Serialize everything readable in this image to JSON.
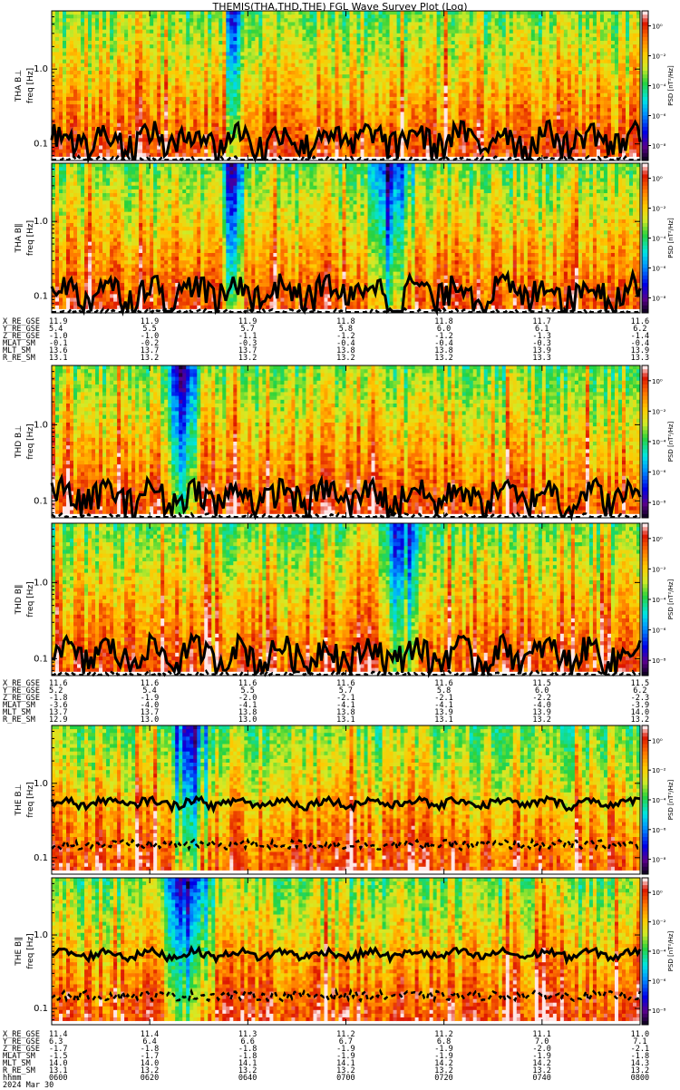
{
  "chart_data": {
    "type": "heatmap",
    "title": "THEMIS(THA,THD,THE) FGL Wave Survey Plot (Log)",
    "x_ticks": [
      "0600",
      "0620",
      "0640",
      "0700",
      "0720",
      "0740",
      "0800"
    ],
    "y_ticks": [
      "0.1",
      "1.0"
    ],
    "ylim": [
      0.06,
      6.0
    ],
    "y_scale": "log",
    "colorbar_label": "PSD [nT²/Hz]",
    "colorbar_ticks": [
      "10⁻⁸",
      "10⁻⁶",
      "10⁻⁴",
      "10⁻²",
      "10⁰"
    ],
    "colorbar_range": [
      1e-09,
      10
    ],
    "panels": [
      {
        "probe": "THA",
        "label": "THA B⊥",
        "ylabel": "freq [Hz]",
        "line_base": 0.12,
        "line_amp": 0.45,
        "line_var": 0.9,
        "dash_base": 0.06,
        "blue_bands": [
          [
            0.29,
            0.32
          ]
        ]
      },
      {
        "probe": "THA",
        "label": "THA B∥",
        "ylabel": "freq [Hz]",
        "line_base": 0.12,
        "line_amp": 0.45,
        "line_var": 0.9,
        "dash_base": 0.06,
        "blue_bands": [
          [
            0.28,
            0.33
          ],
          [
            0.52,
            0.62
          ]
        ]
      },
      {
        "probe": "THD",
        "label": "THD B⊥",
        "ylabel": "freq [Hz]",
        "line_base": 0.12,
        "line_amp": 0.45,
        "line_var": 0.9,
        "dash_base": 0.06,
        "blue_bands": [
          [
            0.18,
            0.26
          ]
        ]
      },
      {
        "probe": "THD",
        "label": "THD B∥",
        "ylabel": "freq [Hz]",
        "line_base": 0.12,
        "line_amp": 0.45,
        "line_var": 0.9,
        "dash_base": 0.06,
        "blue_bands": [
          [
            0.55,
            0.64
          ]
        ]
      },
      {
        "probe": "THE",
        "label": "THE B⊥",
        "ylabel": "freq [Hz]",
        "line_base": 0.55,
        "line_amp": 0.15,
        "line_var": 0.25,
        "dash_base": 0.15,
        "blue_bands": [
          [
            0.18,
            0.28
          ]
        ]
      },
      {
        "probe": "THE",
        "label": "THE B∥",
        "ylabel": "freq [Hz]",
        "line_base": 0.55,
        "line_amp": 0.15,
        "line_var": 0.25,
        "dash_base": 0.15,
        "blue_bands": [
          [
            0.18,
            0.28
          ]
        ]
      }
    ],
    "ephemeris": [
      {
        "probe": "THA",
        "rows": [
          {
            "label": "X_RE_GSE",
            "values": [
              "11.9",
              "11.9",
              "11.9",
              "11.8",
              "11.8",
              "11.7",
              "11.6"
            ]
          },
          {
            "label": "Y_RE_GSE",
            "values": [
              "5.4",
              "5.5",
              "5.7",
              "5.8",
              "6.0",
              "6.1",
              "6.2"
            ]
          },
          {
            "label": "Z_RE_GSE",
            "values": [
              "-1.0",
              "-1.0",
              "-1.1",
              "-1.2",
              "-1.2",
              "-1.3",
              "-1.4"
            ]
          },
          {
            "label": "MLAT_SM",
            "values": [
              "-0.1",
              "-0.2",
              "-0.3",
              "-0.4",
              "-0.4",
              "-0.3",
              "-0.4"
            ]
          },
          {
            "label": "MLT_SM",
            "values": [
              "13.6",
              "13.7",
              "13.7",
              "13.8",
              "13.8",
              "13.9",
              "13.9"
            ]
          },
          {
            "label": "R_RE_SM",
            "values": [
              "13.1",
              "13.2",
              "13.2",
              "13.2",
              "13.2",
              "13.3",
              "13.3"
            ]
          }
        ]
      },
      {
        "probe": "THD",
        "rows": [
          {
            "label": "X_RE_GSE",
            "values": [
              "11.6",
              "11.6",
              "11.6",
              "11.6",
              "11.6",
              "11.5",
              "11.5"
            ]
          },
          {
            "label": "Y_RE_GSE",
            "values": [
              "5.2",
              "5.4",
              "5.5",
              "5.7",
              "5.8",
              "6.0",
              "6.2"
            ]
          },
          {
            "label": "Z_RE_GSE",
            "values": [
              "-1.8",
              "-1.9",
              "-2.0",
              "-2.1",
              "-2.1",
              "-2.2",
              "-2.3"
            ]
          },
          {
            "label": "MLAT_SM",
            "values": [
              "-3.6",
              "-4.0",
              "-4.1",
              "-4.1",
              "-4.1",
              "-4.0",
              "-3.9"
            ]
          },
          {
            "label": "MLT_SM",
            "values": [
              "13.7",
              "13.7",
              "13.8",
              "13.8",
              "13.9",
              "13.9",
              "14.0"
            ]
          },
          {
            "label": "R_RE_SM",
            "values": [
              "12.9",
              "13.0",
              "13.0",
              "13.1",
              "13.1",
              "13.2",
              "13.2"
            ]
          }
        ]
      },
      {
        "probe": "THE",
        "rows": [
          {
            "label": "X_RE_GSE",
            "values": [
              "11.4",
              "11.4",
              "11.3",
              "11.2",
              "11.2",
              "11.1",
              "11.0"
            ]
          },
          {
            "label": "Y_RE_GSE",
            "values": [
              "6.3",
              "6.4",
              "6.6",
              "6.7",
              "6.8",
              "7.0",
              "7.1"
            ]
          },
          {
            "label": "Z_RE_GSE",
            "values": [
              "-1.7",
              "-1.8",
              "-1.8",
              "-1.9",
              "-1.9",
              "-2.0",
              "-2.1"
            ]
          },
          {
            "label": "MLAT_SM",
            "values": [
              "-1.5",
              "-1.7",
              "-1.8",
              "-1.9",
              "-1.9",
              "-1.9",
              "-1.8"
            ]
          },
          {
            "label": "MLT_SM",
            "values": [
              "14.0",
              "14.0",
              "14.1",
              "14.1",
              "14.2",
              "14.2",
              "14.3"
            ]
          },
          {
            "label": "R_RE_SM",
            "values": [
              "13.1",
              "13.2",
              "13.2",
              "13.2",
              "13.2",
              "13.2",
              "13.2"
            ]
          },
          {
            "label": "hhmm",
            "values": [
              "0600",
              "0620",
              "0640",
              "0700",
              "0720",
              "0740",
              "0800"
            ]
          }
        ]
      }
    ],
    "date_label": "2024 Mar 30"
  }
}
